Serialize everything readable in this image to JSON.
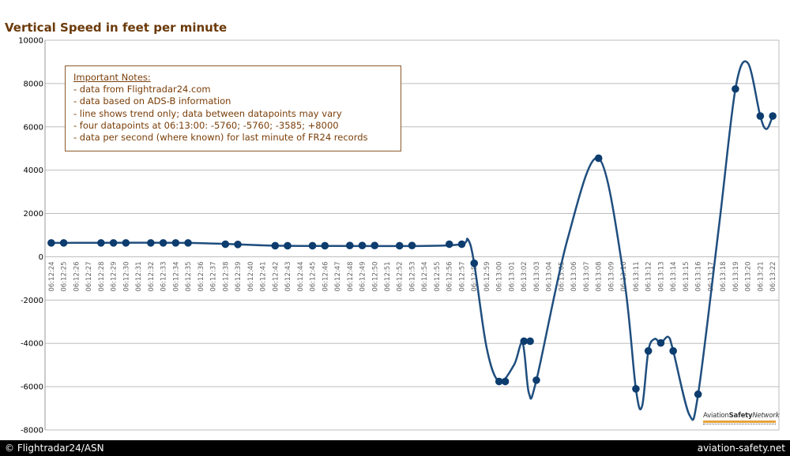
{
  "chart_data": {
    "type": "line",
    "title": "Vertical Speed in feet per minute",
    "ylim": [
      -8000,
      10000
    ],
    "yticks": [
      -8000,
      -6000,
      -4000,
      -2000,
      0,
      2000,
      4000,
      6000,
      8000,
      10000
    ],
    "ytick_labels": [
      "-8000",
      "-6000",
      "-4000",
      "-2000",
      "0",
      "2000",
      "4000",
      "6000",
      "8000",
      "10000"
    ],
    "categories": [
      "06:12:24",
      "06:12:25",
      "06:12:26",
      "06:12:27",
      "06:12:28",
      "06:12:29",
      "06:12:30",
      "06:12:31",
      "06:12:32",
      "06:12:33",
      "06:12:34",
      "06:12:35",
      "06:12:36",
      "06:12:37",
      "06:12:38",
      "06:12:39",
      "06:12:40",
      "06:12:41",
      "06:12:42",
      "06:12:43",
      "06:12:44",
      "06:12:45",
      "06:12:46",
      "06:12:47",
      "06:12:48",
      "06:12:49",
      "06:12:50",
      "06:12:51",
      "06:12:52",
      "06:12:53",
      "06:12:54",
      "06:12:55",
      "06:12:56",
      "06:12:57",
      "06:12:58",
      "06:12:59",
      "06:13:00",
      "06:13:01",
      "06:13:02",
      "06:13:03",
      "06:13:04",
      "06:13:05",
      "06:13:06",
      "06:13:07",
      "06:13:08",
      "06:13:09",
      "06:13:10",
      "06:13:11",
      "06:13:12",
      "06:13:13",
      "06:13:14",
      "06:13:15",
      "06:13:16",
      "06:13:17",
      "06:13:18",
      "06:13:19",
      "06:13:20",
      "06:13:21",
      "06:13:22"
    ],
    "grid": "horizontal",
    "series": [
      {
        "color": "#0d3c6e",
        "points": [
          {
            "t": 0,
            "v": 640
          },
          {
            "t": 1,
            "v": 640
          },
          {
            "t": 4,
            "v": 640
          },
          {
            "t": 5,
            "v": 640
          },
          {
            "t": 6,
            "v": 640
          },
          {
            "t": 8,
            "v": 640
          },
          {
            "t": 9,
            "v": 640
          },
          {
            "t": 10,
            "v": 640
          },
          {
            "t": 11,
            "v": 640
          },
          {
            "t": 14,
            "v": 580
          },
          {
            "t": 15,
            "v": 570
          },
          {
            "t": 18,
            "v": 510
          },
          {
            "t": 19,
            "v": 510
          },
          {
            "t": 21,
            "v": 510
          },
          {
            "t": 22,
            "v": 510
          },
          {
            "t": 24,
            "v": 520
          },
          {
            "t": 25,
            "v": 520
          },
          {
            "t": 26,
            "v": 520
          },
          {
            "t": 28,
            "v": 510
          },
          {
            "t": 29,
            "v": 520
          },
          {
            "t": 32,
            "v": 580
          },
          {
            "t": 33,
            "v": 580
          },
          {
            "t": 34,
            "v": -300
          },
          {
            "t": 36,
            "v": -5760
          },
          {
            "t": 36.5,
            "v": -5760
          },
          {
            "t": 38,
            "v": -3900
          },
          {
            "t": 38.5,
            "v": -3900
          },
          {
            "t": 39,
            "v": -5700
          },
          {
            "t": 44,
            "v": 4550
          },
          {
            "t": 47,
            "v": -6100
          },
          {
            "t": 48,
            "v": -4350
          },
          {
            "t": 49,
            "v": -3980
          },
          {
            "t": 50,
            "v": -4350
          },
          {
            "t": 52,
            "v": -6350
          },
          {
            "t": 55,
            "v": 7750
          },
          {
            "t": 57,
            "v": 6500
          },
          {
            "t": 58,
            "v": 6500
          }
        ],
        "curve_control_points": [
          {
            "t": 0,
            "v": 640
          },
          {
            "t": 11,
            "v": 640
          },
          {
            "t": 18,
            "v": 510
          },
          {
            "t": 22,
            "v": 500
          },
          {
            "t": 30,
            "v": 500
          },
          {
            "t": 33,
            "v": 580
          },
          {
            "t": 33.5,
            "v": 800
          },
          {
            "t": 34,
            "v": -300
          },
          {
            "t": 35,
            "v": -4200
          },
          {
            "t": 36,
            "v": -5760
          },
          {
            "t": 37.2,
            "v": -5000
          },
          {
            "t": 37.9,
            "v": -4000
          },
          {
            "t": 38.4,
            "v": -6300
          },
          {
            "t": 39,
            "v": -5700
          },
          {
            "t": 41.5,
            "v": 800
          },
          {
            "t": 44,
            "v": 4550
          },
          {
            "t": 46,
            "v": -800
          },
          {
            "t": 47,
            "v": -6100
          },
          {
            "t": 47.5,
            "v": -6900
          },
          {
            "t": 48,
            "v": -4350
          },
          {
            "t": 48.5,
            "v": -3800
          },
          {
            "t": 49,
            "v": -3980
          },
          {
            "t": 49.6,
            "v": -3700
          },
          {
            "t": 50,
            "v": -4350
          },
          {
            "t": 51.3,
            "v": -7300
          },
          {
            "t": 52,
            "v": -6350
          },
          {
            "t": 53.7,
            "v": 1500
          },
          {
            "t": 55,
            "v": 7750
          },
          {
            "t": 56,
            "v": 8950
          },
          {
            "t": 57,
            "v": 6500
          },
          {
            "t": 57.5,
            "v": 5900
          },
          {
            "t": 58,
            "v": 6500
          }
        ]
      }
    ]
  },
  "notes": {
    "heading": "Important Notes:",
    "lines": [
      "- data from Flightradar24.com",
      "- data based on ADS-B information",
      "- line shows trend only; data between datapoints may vary",
      "- four datapoints at 06:13:00: -5760; -5760; -3585; +8000",
      "- data per second (where known) for last minute of FR24 records"
    ]
  },
  "logo": {
    "text_part1": "Aviation",
    "text_part2": "Safety",
    "text_part3": "Network"
  },
  "footer": {
    "left": "© Flightradar24/ASN",
    "right": "aviation-safety.net"
  }
}
